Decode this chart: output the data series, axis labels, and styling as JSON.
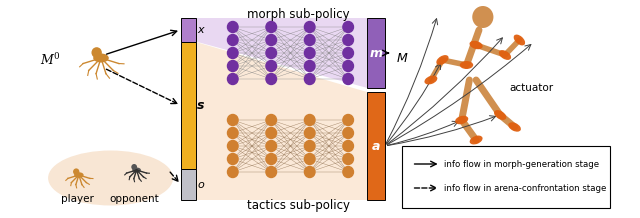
{
  "fig_width": 6.4,
  "fig_height": 2.18,
  "dpi": 100,
  "bg_color": "#ffffff",
  "title_morph": "morph sub-policy",
  "title_tactics": "tactics sub-policy",
  "input_bar_color_x": "#b07fcc",
  "input_bar_color_s": "#f0b020",
  "input_bar_color_o": "#c0c0c8",
  "output_bar_m_color": "#9060b8",
  "output_bar_a_color": "#e06818",
  "morph_nn_color": "#7030a0",
  "tactics_nn_color": "#d08030",
  "morph_conn_color": "#808080",
  "tactics_conn_color": "#907050",
  "label_x": "x",
  "label_s": "s",
  "label_o": "o",
  "label_m": "m",
  "label_a": "a",
  "label_M0": "$M^0$",
  "label_M": "$M$",
  "label_player": "player",
  "label_opponent": "opponent",
  "label_actuator": "actuator",
  "legend_solid": "info flow in morph-generation stage",
  "legend_dashed": "info flow in arena-confrontation stage",
  "trap_morph_color": "#d8b8e8",
  "trap_tactics_color": "#f8d8b8"
}
